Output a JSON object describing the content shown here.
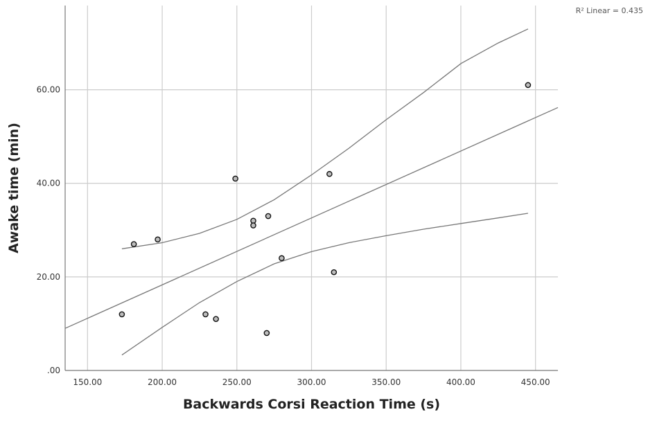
{
  "chart_data": {
    "type": "scatter",
    "xlabel": "Backwards Corsi Reaction Time (s)",
    "ylabel": "Awake time (min)",
    "xlim": [
      135,
      465
    ],
    "ylim": [
      0,
      78
    ],
    "x_ticks": [
      150,
      200,
      250,
      300,
      350,
      400,
      450
    ],
    "x_tick_labels": [
      "150.00",
      "200.00",
      "250.00",
      "300.00",
      "350.00",
      "400.00",
      "450.00"
    ],
    "y_ticks": [
      0,
      20,
      40,
      60
    ],
    "y_tick_labels": [
      ".00",
      "20.00",
      "40.00",
      "60.00"
    ],
    "grid": true,
    "annotation": "R² Linear = 0.435",
    "points": [
      {
        "x": 173,
        "y": 12
      },
      {
        "x": 181,
        "y": 27
      },
      {
        "x": 197,
        "y": 28
      },
      {
        "x": 229,
        "y": 12
      },
      {
        "x": 236,
        "y": 11
      },
      {
        "x": 249,
        "y": 41
      },
      {
        "x": 261,
        "y": 32
      },
      {
        "x": 261,
        "y": 31
      },
      {
        "x": 270,
        "y": 8
      },
      {
        "x": 271,
        "y": 33
      },
      {
        "x": 280,
        "y": 24
      },
      {
        "x": 312,
        "y": 42
      },
      {
        "x": 315,
        "y": 21
      },
      {
        "x": 445,
        "y": 61
      }
    ],
    "fit_line": {
      "x": [
        135,
        465
      ],
      "y": [
        9,
        56.2
      ]
    },
    "upper_band": {
      "x": [
        173,
        200,
        225,
        250,
        275,
        300,
        325,
        350,
        375,
        400,
        425,
        445
      ],
      "y": [
        26,
        27.3,
        29.3,
        32.3,
        36.5,
        41.8,
        47.5,
        53.6,
        59.4,
        65.6,
        70,
        73
      ]
    },
    "lower_band": {
      "x": [
        173,
        200,
        225,
        250,
        275,
        300,
        325,
        350,
        375,
        400,
        425,
        445
      ],
      "y": [
        3.3,
        9.2,
        14.5,
        19,
        22.8,
        25.4,
        27.3,
        28.8,
        30.2,
        31.4,
        32.6,
        33.6
      ]
    },
    "colors": {
      "point_fill": "#bdbdbd",
      "point_stroke": "#111111",
      "line": "#777777",
      "grid": "#cccccc",
      "axis": "#777777"
    }
  }
}
